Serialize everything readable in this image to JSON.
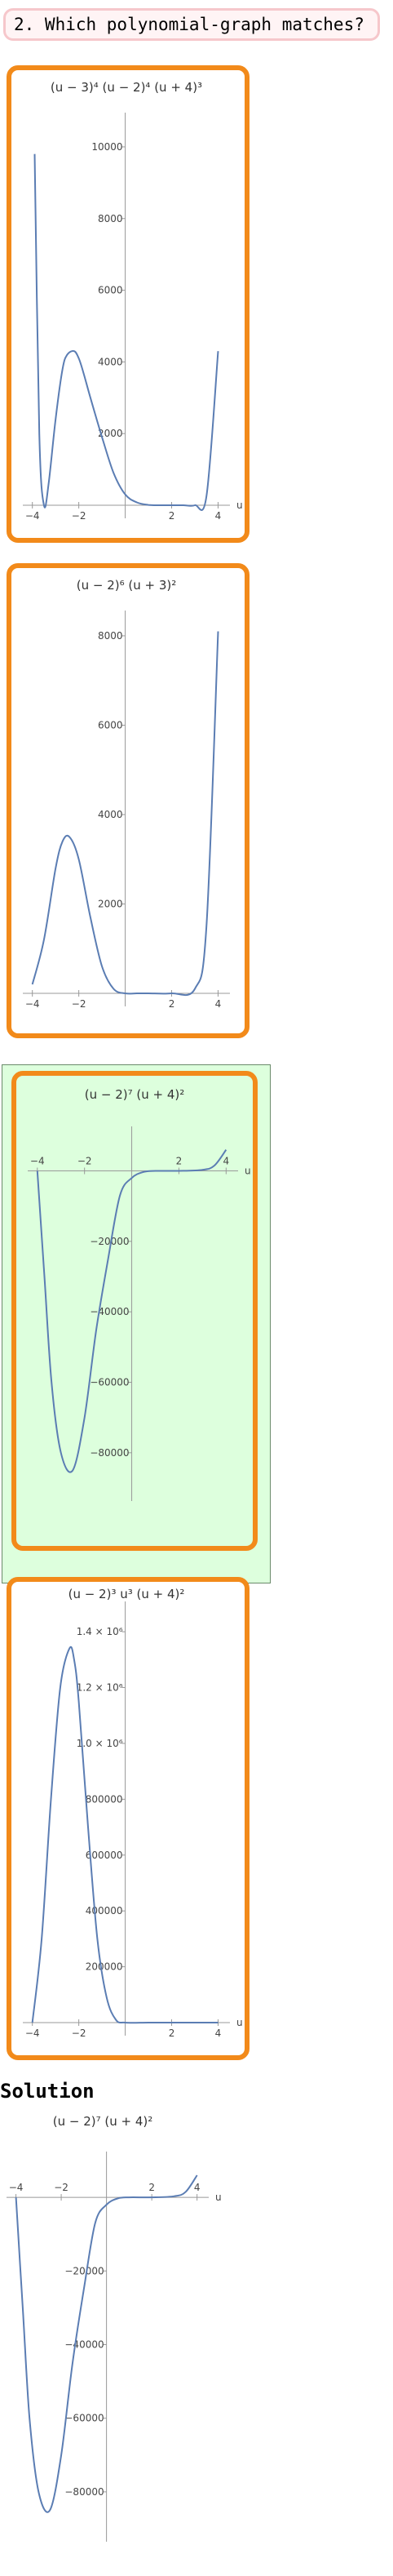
{
  "question": {
    "text": "2. Which polynomial-graph matches?"
  },
  "colors": {
    "option_border": "#f28a1a",
    "correct_background": "#ddffdd",
    "curve": "#5b7db3",
    "question_border": "#f6c7cb"
  },
  "options": [
    {
      "formula": "(u − 3)⁴ (u − 2)⁴ (u + 4)³",
      "x_axis_label": "u",
      "x_ticks": [
        "−4",
        "−2",
        "2",
        "4"
      ],
      "y_ticks": [
        "2000",
        "4000",
        "6000",
        "8000",
        "10000"
      ],
      "selected": false
    },
    {
      "formula": "(u − 2)⁶ (u + 3)²",
      "x_axis_label": "",
      "x_ticks": [
        "−4",
        "−2",
        "2",
        "4"
      ],
      "y_ticks": [
        "2000",
        "4000",
        "6000",
        "8000"
      ],
      "selected": false
    },
    {
      "formula": "(u − 2)⁷ (u + 4)²",
      "x_axis_label": "u",
      "x_ticks": [
        "−4",
        "−2",
        "2",
        "4"
      ],
      "y_ticks": [
        "−20000",
        "−40000",
        "−60000",
        "−80000"
      ],
      "selected": true
    },
    {
      "formula": "(u − 2)³ u³ (u + 4)²",
      "x_axis_label": "u",
      "x_ticks": [
        "−4",
        "−2",
        "2",
        "4"
      ],
      "y_ticks": [
        "200000",
        "400000",
        "600000",
        "800000",
        "1.0 × 10⁶",
        "1.2 × 10⁶",
        "1.4 × 10⁶"
      ],
      "selected": false
    }
  ],
  "solution": {
    "heading": "Solution",
    "formula": "(u − 2)⁷ (u + 4)²",
    "x_axis_label": "u",
    "x_ticks": [
      "−4",
      "−2",
      "2",
      "4"
    ],
    "y_ticks": [
      "−20000",
      "−40000",
      "−60000",
      "−80000"
    ]
  },
  "chart_data": [
    {
      "type": "line",
      "title": "(u − 3)⁴ (u − 2)⁴ (u + 4)³",
      "xlabel": "u",
      "ylabel": "",
      "xlim": [
        -4.2,
        4.3
      ],
      "ylim": [
        0,
        10500
      ],
      "x": [
        -3.9,
        -3.7,
        -3.5,
        -3.3,
        -3,
        -2.7,
        -2.5,
        -2.2,
        -2,
        -1.8,
        -1.5,
        -1,
        -0.5,
        0,
        0.5,
        1,
        1.5,
        2,
        2.5,
        3,
        3.5,
        4
      ],
      "y": [
        9800,
        2000,
        0,
        600,
        2400,
        3800,
        4200,
        4300,
        4100,
        3700,
        3000,
        1900,
        900,
        300,
        80,
        10,
        0,
        0,
        0,
        0,
        250,
        4300
      ],
      "grid": false
    },
    {
      "type": "line",
      "title": "(u − 2)⁶ (u + 3)²",
      "xlabel": "",
      "ylabel": "",
      "xlim": [
        -4.2,
        4.3
      ],
      "ylim": [
        0,
        8200
      ],
      "x": [
        -4,
        -3.5,
        -3,
        -2.7,
        -2.4,
        -2,
        -1.5,
        -1,
        -0.5,
        0,
        0.5,
        1,
        2,
        3,
        3.5,
        4
      ],
      "y": [
        200,
        1200,
        2800,
        3400,
        3500,
        3000,
        1700,
        600,
        100,
        0,
        0,
        0,
        0,
        100,
        1500,
        8100
      ],
      "grid": false
    },
    {
      "type": "line",
      "title": "(u − 2)⁷ (u + 4)²",
      "xlabel": "u",
      "ylabel": "",
      "xlim": [
        -4.2,
        4.3
      ],
      "ylim": [
        -90000,
        8000
      ],
      "x": [
        -4,
        -3.7,
        -3.4,
        -3,
        -2.5,
        -2,
        -1.5,
        -1,
        -0.5,
        0,
        0.5,
        1,
        2,
        3,
        3.5,
        4
      ],
      "y": [
        0,
        -30000,
        -60000,
        -80000,
        -85000,
        -70000,
        -45000,
        -25000,
        -7000,
        -2000,
        -300,
        0,
        0,
        300,
        1500,
        6000
      ],
      "grid": false
    },
    {
      "type": "line",
      "title": "(u − 2)³ u³ (u + 4)²",
      "xlabel": "u",
      "ylabel": "",
      "xlim": [
        -4.2,
        4.3
      ],
      "ylim": [
        0,
        1450000
      ],
      "x": [
        -4,
        -3.6,
        -3.2,
        -2.8,
        -2.4,
        -2.2,
        -2,
        -1.6,
        -1.2,
        -0.8,
        -0.4,
        0,
        1,
        2,
        3,
        4
      ],
      "y": [
        0,
        300000,
        800000,
        1200000,
        1340000,
        1300000,
        1150000,
        700000,
        300000,
        90000,
        10000,
        0,
        0,
        0,
        0,
        0
      ],
      "grid": false
    }
  ]
}
